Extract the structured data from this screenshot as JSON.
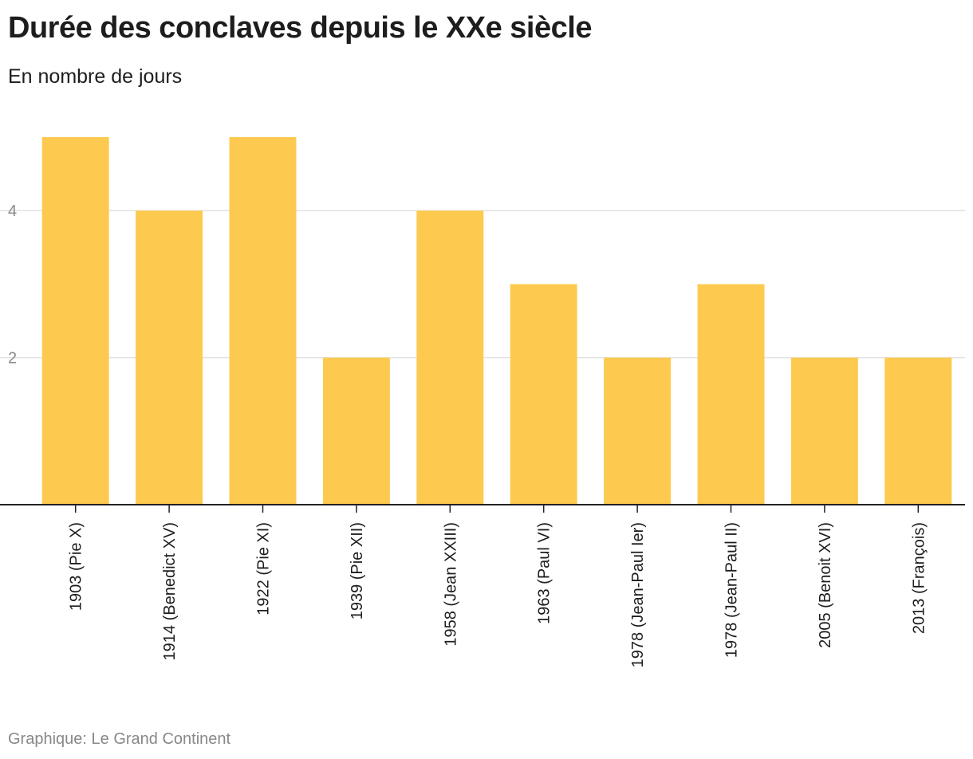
{
  "chart_data": {
    "type": "bar",
    "title": "Durée des conclaves depuis le XXe siècle",
    "subtitle": "En nombre de jours",
    "source": "Graphique: Le Grand Continent",
    "categories": [
      "1903 (Pie X)",
      "1914 (Benedict XV)",
      "1922 (Pie XI)",
      "1939 (Pie XII)",
      "1958 (Jean XXIII)",
      "1963 (Paul VI)",
      "1978 (Jean-Paul Ier)",
      "1978 (Jean-Paul II)",
      "2005 (Benoit XVI)",
      "2013 (François)"
    ],
    "values": [
      5,
      4,
      5,
      2,
      4,
      3,
      2,
      3,
      2,
      2
    ],
    "ylim": [
      0,
      5
    ],
    "yticks": [
      2,
      4
    ],
    "grid": true,
    "xlabel": "",
    "ylabel": "",
    "colors": {
      "bar": "#fdca4f",
      "grid": "#e2e2e2",
      "axis": "#222222"
    }
  }
}
